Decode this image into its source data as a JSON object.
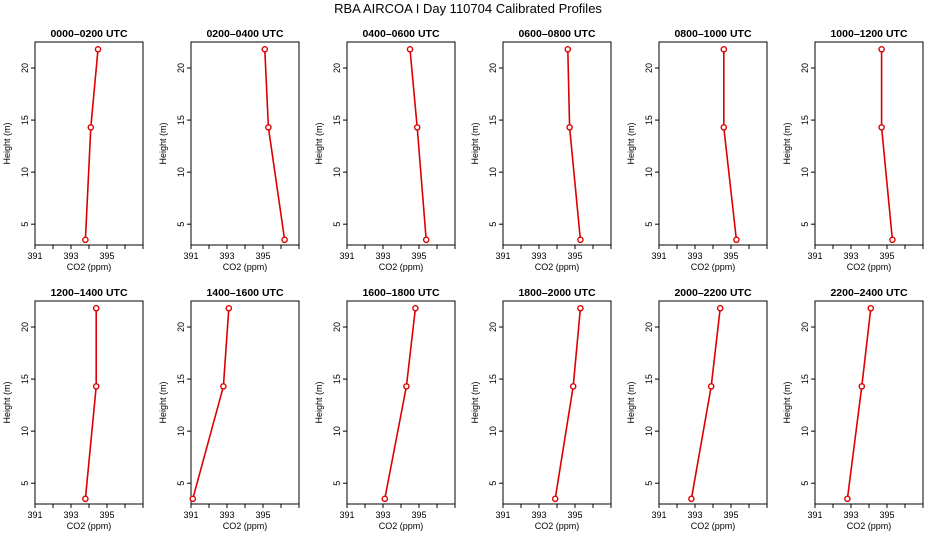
{
  "figure": {
    "title": "RBA AIRCOA I  Day 110704  Calibrated Profiles"
  },
  "colors": {
    "series": "#dd0000",
    "axis": "#000000",
    "background": "#ffffff"
  },
  "chart_data": [
    {
      "type": "line",
      "title": "0000–0200 UTC",
      "xlabel": "CO2 (ppm)",
      "ylabel": "Height (m)",
      "xlim": [
        391,
        397
      ],
      "ylim": [
        3,
        22.5
      ],
      "xticks": [
        391,
        392,
        393,
        394,
        395,
        396,
        397
      ],
      "xticklabels": [
        "391",
        "",
        "393",
        "",
        "395",
        "",
        ""
      ],
      "yticks": [
        5,
        10,
        15,
        20
      ],
      "yticklabels": [
        "5",
        "10",
        "15",
        "20"
      ],
      "series": [
        {
          "x": [
            393.8,
            394.1,
            394.5
          ],
          "y": [
            3.5,
            14.3,
            21.8
          ]
        }
      ]
    },
    {
      "type": "line",
      "title": "0200–0400 UTC",
      "xlabel": "CO2 (ppm)",
      "ylabel": "Height (m)",
      "xlim": [
        391,
        397
      ],
      "ylim": [
        3,
        22.5
      ],
      "xticks": [
        391,
        392,
        393,
        394,
        395,
        396,
        397
      ],
      "xticklabels": [
        "391",
        "",
        "393",
        "",
        "395",
        "",
        ""
      ],
      "yticks": [
        5,
        10,
        15,
        20
      ],
      "yticklabels": [
        "5",
        "10",
        "15",
        "20"
      ],
      "series": [
        {
          "x": [
            396.2,
            395.3,
            395.1
          ],
          "y": [
            3.5,
            14.3,
            21.8
          ]
        }
      ]
    },
    {
      "type": "line",
      "title": "0400–0600 UTC",
      "xlabel": "CO2 (ppm)",
      "ylabel": "Height (m)",
      "xlim": [
        391,
        397
      ],
      "ylim": [
        3,
        22.5
      ],
      "xticks": [
        391,
        392,
        393,
        394,
        395,
        396,
        397
      ],
      "xticklabels": [
        "391",
        "",
        "393",
        "",
        "395",
        "",
        ""
      ],
      "yticks": [
        5,
        10,
        15,
        20
      ],
      "yticklabels": [
        "5",
        "10",
        "15",
        "20"
      ],
      "series": [
        {
          "x": [
            395.4,
            394.9,
            394.5
          ],
          "y": [
            3.5,
            14.3,
            21.8
          ]
        }
      ]
    },
    {
      "type": "line",
      "title": "0600–0800 UTC",
      "xlabel": "CO2 (ppm)",
      "ylabel": "Height (m)",
      "xlim": [
        391,
        397
      ],
      "ylim": [
        3,
        22.5
      ],
      "xticks": [
        391,
        392,
        393,
        394,
        395,
        396,
        397
      ],
      "xticklabels": [
        "391",
        "",
        "393",
        "",
        "395",
        "",
        ""
      ],
      "yticks": [
        5,
        10,
        15,
        20
      ],
      "yticklabels": [
        "5",
        "10",
        "15",
        "20"
      ],
      "series": [
        {
          "x": [
            395.3,
            394.7,
            394.6
          ],
          "y": [
            3.5,
            14.3,
            21.8
          ]
        }
      ]
    },
    {
      "type": "line",
      "title": "0800–1000 UTC",
      "xlabel": "CO2 (ppm)",
      "ylabel": "Height (m)",
      "xlim": [
        391,
        397
      ],
      "ylim": [
        3,
        22.5
      ],
      "xticks": [
        391,
        392,
        393,
        394,
        395,
        396,
        397
      ],
      "xticklabels": [
        "391",
        "",
        "393",
        "",
        "395",
        "",
        ""
      ],
      "yticks": [
        5,
        10,
        15,
        20
      ],
      "yticklabels": [
        "5",
        "10",
        "15",
        "20"
      ],
      "series": [
        {
          "x": [
            395.3,
            394.6,
            394.6
          ],
          "y": [
            3.5,
            14.3,
            21.8
          ]
        }
      ]
    },
    {
      "type": "line",
      "title": "1000–1200 UTC",
      "xlabel": "CO2 (ppm)",
      "ylabel": "Height (m)",
      "xlim": [
        391,
        397
      ],
      "ylim": [
        3,
        22.5
      ],
      "xticks": [
        391,
        392,
        393,
        394,
        395,
        396,
        397
      ],
      "xticklabels": [
        "391",
        "",
        "393",
        "",
        "395",
        "",
        ""
      ],
      "yticks": [
        5,
        10,
        15,
        20
      ],
      "yticklabels": [
        "5",
        "10",
        "15",
        "20"
      ],
      "series": [
        {
          "x": [
            395.3,
            394.7,
            394.7
          ],
          "y": [
            3.5,
            14.3,
            21.8
          ]
        }
      ]
    },
    {
      "type": "line",
      "title": "1200–1400 UTC",
      "xlabel": "CO2 (ppm)",
      "ylabel": "Height (m)",
      "xlim": [
        391,
        397
      ],
      "ylim": [
        3,
        22.5
      ],
      "xticks": [
        391,
        392,
        393,
        394,
        395,
        396,
        397
      ],
      "xticklabels": [
        "391",
        "",
        "393",
        "",
        "395",
        "",
        ""
      ],
      "yticks": [
        5,
        10,
        15,
        20
      ],
      "yticklabels": [
        "5",
        "10",
        "15",
        "20"
      ],
      "series": [
        {
          "x": [
            393.8,
            394.4,
            394.4
          ],
          "y": [
            3.5,
            14.3,
            21.8
          ]
        }
      ]
    },
    {
      "type": "line",
      "title": "1400–1600 UTC",
      "xlabel": "CO2 (ppm)",
      "ylabel": "Height (m)",
      "xlim": [
        391,
        397
      ],
      "ylim": [
        3,
        22.5
      ],
      "xticks": [
        391,
        392,
        393,
        394,
        395,
        396,
        397
      ],
      "xticklabels": [
        "391",
        "",
        "393",
        "",
        "395",
        "",
        ""
      ],
      "yticks": [
        5,
        10,
        15,
        20
      ],
      "yticklabels": [
        "5",
        "10",
        "15",
        "20"
      ],
      "series": [
        {
          "x": [
            391.1,
            392.8,
            393.1
          ],
          "y": [
            3.5,
            14.3,
            21.8
          ]
        }
      ]
    },
    {
      "type": "line",
      "title": "1600–1800 UTC",
      "xlabel": "CO2 (ppm)",
      "ylabel": "Height (m)",
      "xlim": [
        391,
        397
      ],
      "ylim": [
        3,
        22.5
      ],
      "xticks": [
        391,
        392,
        393,
        394,
        395,
        396,
        397
      ],
      "xticklabels": [
        "391",
        "",
        "393",
        "",
        "395",
        "",
        ""
      ],
      "yticks": [
        5,
        10,
        15,
        20
      ],
      "yticklabels": [
        "5",
        "10",
        "15",
        "20"
      ],
      "series": [
        {
          "x": [
            393.1,
            394.3,
            394.8
          ],
          "y": [
            3.5,
            14.3,
            21.8
          ]
        }
      ]
    },
    {
      "type": "line",
      "title": "1800–2000 UTC",
      "xlabel": "CO2 (ppm)",
      "ylabel": "Height (m)",
      "xlim": [
        391,
        397
      ],
      "ylim": [
        3,
        22.5
      ],
      "xticks": [
        391,
        392,
        393,
        394,
        395,
        396,
        397
      ],
      "xticklabels": [
        "391",
        "",
        "393",
        "",
        "395",
        "",
        ""
      ],
      "yticks": [
        5,
        10,
        15,
        20
      ],
      "yticklabels": [
        "5",
        "10",
        "15",
        "20"
      ],
      "series": [
        {
          "x": [
            393.9,
            394.9,
            395.3
          ],
          "y": [
            3.5,
            14.3,
            21.8
          ]
        }
      ]
    },
    {
      "type": "line",
      "title": "2000–2200 UTC",
      "xlabel": "CO2 (ppm)",
      "ylabel": "Height (m)",
      "xlim": [
        391,
        397
      ],
      "ylim": [
        3,
        22.5
      ],
      "xticks": [
        391,
        392,
        393,
        394,
        395,
        396,
        397
      ],
      "xticklabels": [
        "391",
        "",
        "393",
        "",
        "395",
        "",
        ""
      ],
      "yticks": [
        5,
        10,
        15,
        20
      ],
      "yticklabels": [
        "5",
        "10",
        "15",
        "20"
      ],
      "series": [
        {
          "x": [
            392.8,
            393.9,
            394.4
          ],
          "y": [
            3.5,
            14.3,
            21.8
          ]
        }
      ]
    },
    {
      "type": "line",
      "title": "2200–2400 UTC",
      "xlabel": "CO2 (ppm)",
      "ylabel": "Height (m)",
      "xlim": [
        391,
        397
      ],
      "ylim": [
        3,
        22.5
      ],
      "xticks": [
        391,
        392,
        393,
        394,
        395,
        396,
        397
      ],
      "xticklabels": [
        "391",
        "",
        "393",
        "",
        "395",
        "",
        ""
      ],
      "yticks": [
        5,
        10,
        15,
        20
      ],
      "yticklabels": [
        "5",
        "10",
        "15",
        "20"
      ],
      "series": [
        {
          "x": [
            392.8,
            393.6,
            394.1
          ],
          "y": [
            3.5,
            14.3,
            21.8
          ]
        }
      ]
    }
  ]
}
